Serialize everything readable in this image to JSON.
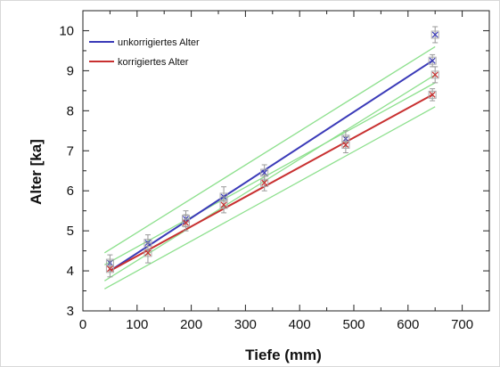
{
  "chart_data": {
    "type": "scatter",
    "title": "",
    "xlabel": "Tiefe (mm)",
    "ylabel": "Alter [ka]",
    "xlim": [
      0,
      750
    ],
    "ylim": [
      3,
      10.5
    ],
    "xticks": [
      0,
      100,
      200,
      300,
      400,
      500,
      600,
      700
    ],
    "yticks": [
      3,
      4,
      5,
      6,
      7,
      8,
      9,
      10
    ],
    "xtick_labels": [
      "0",
      "100",
      "200",
      "300",
      "400",
      "500",
      "600",
      "700"
    ],
    "ytick_labels": [
      "3",
      "4",
      "5",
      "6",
      "7",
      "8",
      "9",
      "10"
    ],
    "legend_position": "top-left",
    "grid": false,
    "series": [
      {
        "name": "unkorrigiertes Alter",
        "color": "#3a3ab8",
        "points": [
          {
            "x": 50,
            "y": 4.2,
            "err": 0.2
          },
          {
            "x": 120,
            "y": 4.7,
            "err": 0.2
          },
          {
            "x": 190,
            "y": 5.3,
            "err": 0.2
          },
          {
            "x": 260,
            "y": 5.85,
            "err": 0.25
          },
          {
            "x": 335,
            "y": 6.45,
            "err": 0.2
          },
          {
            "x": 485,
            "y": 7.3,
            "err": 0.2
          },
          {
            "x": 645,
            "y": 9.25,
            "err": 0.15
          },
          {
            "x": 650,
            "y": 9.9,
            "err": 0.2
          }
        ],
        "fit": {
          "x": [
            50,
            645
          ],
          "y": [
            4.0,
            9.25
          ]
        }
      },
      {
        "name": "korrigiertes Alter",
        "color": "#c83030",
        "points": [
          {
            "x": 50,
            "y": 4.05,
            "err": 0.2
          },
          {
            "x": 120,
            "y": 4.45,
            "err": 0.25
          },
          {
            "x": 190,
            "y": 5.2,
            "err": 0.2
          },
          {
            "x": 260,
            "y": 5.65,
            "err": 0.2
          },
          {
            "x": 335,
            "y": 6.2,
            "err": 0.2
          },
          {
            "x": 485,
            "y": 7.15,
            "err": 0.2
          },
          {
            "x": 645,
            "y": 8.4,
            "err": 0.15
          },
          {
            "x": 650,
            "y": 8.9,
            "err": 0.2
          }
        ],
        "fit": {
          "x": [
            50,
            645
          ],
          "y": [
            4.0,
            8.4
          ]
        }
      }
    ],
    "confidence_bands": {
      "color": "#8ee08e",
      "lines": [
        {
          "x": [
            40,
            650
          ],
          "y": [
            4.45,
            9.6
          ]
        },
        {
          "x": [
            40,
            650
          ],
          "y": [
            3.75,
            8.9
          ]
        },
        {
          "x": [
            40,
            650
          ],
          "y": [
            4.15,
            8.7
          ]
        },
        {
          "x": [
            40,
            650
          ],
          "y": [
            3.55,
            8.1
          ]
        }
      ]
    }
  }
}
